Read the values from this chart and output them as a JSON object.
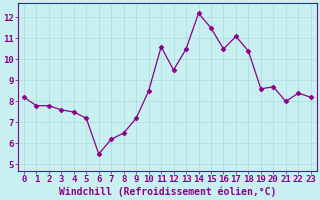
{
  "x": [
    0,
    1,
    2,
    3,
    4,
    5,
    6,
    7,
    8,
    9,
    10,
    11,
    12,
    13,
    14,
    15,
    16,
    17,
    18,
    19,
    20,
    21,
    22,
    23
  ],
  "y": [
    8.2,
    7.8,
    7.8,
    7.6,
    7.5,
    7.2,
    5.5,
    6.2,
    6.5,
    7.2,
    8.5,
    10.6,
    9.5,
    10.5,
    12.2,
    11.5,
    10.5,
    11.1,
    10.4,
    8.6,
    8.7,
    8.0,
    8.4,
    8.2
  ],
  "line_color": "#8b008b",
  "marker": "D",
  "marker_size": 2.5,
  "bg_color": "#c8f0f0",
  "grid_color": "#aadddd",
  "text_color": "#8b008b",
  "xlabel": "Windchill (Refroidissement éolien,°C)",
  "ylabel_ticks": [
    5,
    6,
    7,
    8,
    9,
    10,
    11,
    12
  ],
  "xlim": [
    -0.5,
    23.5
  ],
  "ylim": [
    4.7,
    12.7
  ],
  "tick_fontsize": 6.5,
  "xlabel_fontsize": 7
}
